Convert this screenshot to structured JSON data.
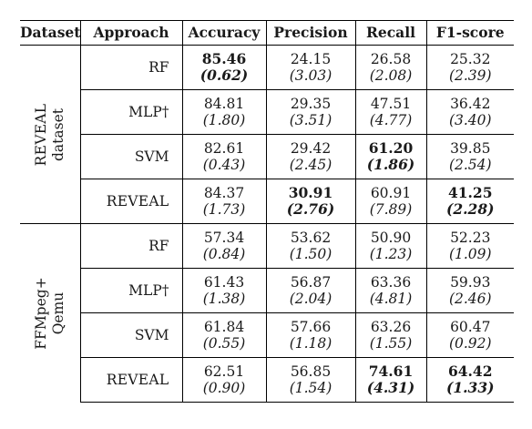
{
  "headers": [
    "Dataset",
    "Approach",
    "Accuracy",
    "Precision",
    "Recall",
    "F1-score"
  ],
  "groups": [
    {
      "dataset_line1": "REVEAL",
      "dataset_line2": "dataset",
      "rows": [
        {
          "approach": "RF",
          "accuracy": "85.46",
          "accuracy_std": "(0.62)",
          "precision": "24.15",
          "precision_std": "(3.03)",
          "recall": "26.58",
          "recall_std": "(2.08)",
          "f1": "25.32",
          "f1_std": "(2.39)"
        },
        {
          "approach": "MLP†",
          "accuracy": "84.81",
          "accuracy_std": "(1.80)",
          "precision": "29.35",
          "precision_std": "(3.51)",
          "recall": "47.51",
          "recall_std": "(4.77)",
          "f1": "36.42",
          "f1_std": "(3.40)"
        },
        {
          "approach": "SVM",
          "accuracy": "82.61",
          "accuracy_std": "(0.43)",
          "precision": "29.42",
          "precision_std": "(2.45)",
          "recall": "61.20",
          "recall_std": "(1.86)",
          "f1": "39.85",
          "f1_std": "(2.54)"
        },
        {
          "approach": "REVEAL",
          "accuracy": "84.37",
          "accuracy_std": "(1.73)",
          "precision": "30.91",
          "precision_std": "(2.76)",
          "recall": "60.91",
          "recall_std": "(7.89)",
          "f1": "41.25",
          "f1_std": "(2.28)"
        }
      ]
    },
    {
      "dataset_line1": "FFMpeg+",
      "dataset_line2": "Qemu",
      "rows": [
        {
          "approach": "RF",
          "accuracy": "57.34",
          "accuracy_std": "(0.84)",
          "precision": "53.62",
          "precision_std": "(1.50)",
          "recall": "50.90",
          "recall_std": "(1.23)",
          "f1": "52.23",
          "f1_std": "(1.09)"
        },
        {
          "approach": "MLP†",
          "accuracy": "61.43",
          "accuracy_std": "(1.38)",
          "precision": "56.87",
          "precision_std": "(2.04)",
          "recall": "63.36",
          "recall_std": "(4.81)",
          "f1": "59.93",
          "f1_std": "(2.46)"
        },
        {
          "approach": "SVM",
          "accuracy": "61.84",
          "accuracy_std": "(0.55)",
          "precision": "57.66",
          "precision_std": "(1.18)",
          "recall": "63.26",
          "recall_std": "(1.55)",
          "f1": "60.47",
          "f1_std": "(0.92)"
        },
        {
          "approach": "REVEAL",
          "accuracy": "62.51",
          "accuracy_std": "(0.90)",
          "precision": "56.85",
          "precision_std": "(1.54)",
          "recall": "74.61",
          "recall_std": "(4.31)",
          "f1": "64.42",
          "f1_std": "(1.33)"
        }
      ]
    }
  ]
}
